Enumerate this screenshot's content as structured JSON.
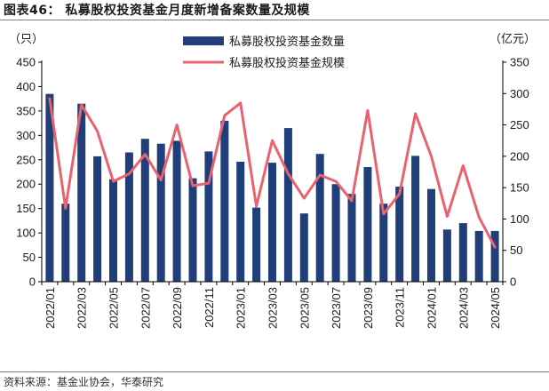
{
  "header": {
    "title": "图表46：  私募股权投资基金月度新增备案数量及规模"
  },
  "footer": {
    "source": "资料来源：基金业协会，华泰研究"
  },
  "chart_data": {
    "type": "bar",
    "title": "图表46：  私募股权投资基金月度新增备案数量及规模",
    "left_unit": "（只）",
    "right_unit": "（亿元）",
    "categories": [
      "2022/01",
      "2022/02",
      "2022/03",
      "2022/04",
      "2022/05",
      "2022/06",
      "2022/07",
      "2022/08",
      "2022/09",
      "2022/10",
      "2022/11",
      "2022/12",
      "2023/01",
      "2023/02",
      "2023/03",
      "2023/04",
      "2023/05",
      "2023/06",
      "2023/07",
      "2023/08",
      "2023/09",
      "2023/10",
      "2023/11",
      "2023/12",
      "2024/01",
      "2024/02",
      "2024/03",
      "2024/04",
      "2024/05"
    ],
    "x_tick_labels": [
      "2022/01",
      "2022/03",
      "2022/05",
      "2022/07",
      "2022/09",
      "2022/11",
      "2023/01",
      "2023/03",
      "2023/05",
      "2023/07",
      "2023/09",
      "2023/11",
      "2024/01",
      "2024/03",
      "2024/05"
    ],
    "ylim_left": [
      0,
      450
    ],
    "ylim_right": [
      0,
      350
    ],
    "yticks_left": [
      0,
      50,
      100,
      150,
      200,
      250,
      300,
      350,
      400,
      450
    ],
    "yticks_right": [
      0,
      50,
      100,
      150,
      200,
      250,
      300,
      350
    ],
    "legend_position": "top-center",
    "series": [
      {
        "name": "私募股权投资基金数量",
        "type": "bar",
        "axis": "left",
        "color": "#1f3e7a",
        "values": [
          385,
          160,
          365,
          257,
          210,
          265,
          293,
          283,
          289,
          212,
          267,
          330,
          246,
          152,
          244,
          315,
          140,
          262,
          200,
          180,
          235,
          160,
          195,
          258,
          190,
          107,
          120,
          104,
          104
        ]
      },
      {
        "name": "私募股权投资基金规模",
        "type": "line",
        "axis": "right",
        "color": "#e8636d",
        "values": [
          292,
          117,
          282,
          240,
          160,
          172,
          203,
          162,
          250,
          153,
          157,
          265,
          285,
          120,
          225,
          172,
          133,
          170,
          160,
          129,
          273,
          108,
          140,
          268,
          200,
          104,
          185,
          103,
          55
        ]
      }
    ]
  }
}
